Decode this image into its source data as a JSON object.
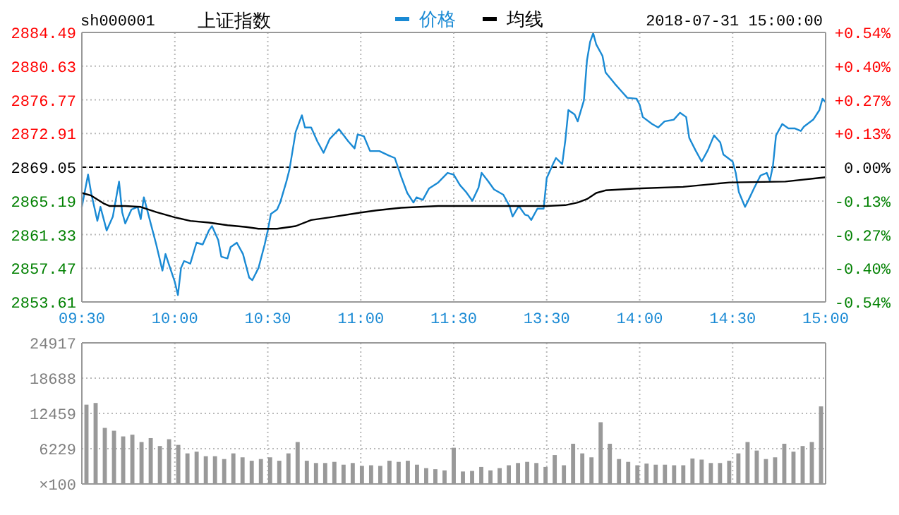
{
  "chart_data": [
    {
      "type": "line",
      "title": "上证指数",
      "annotations": [
        "sh000001"
      ],
      "legend": "top",
      "grid": true,
      "xlim": [
        "2018-07-31T09:30",
        "2018-07-31T11:30"
      ],
      "xticks": [
        {
          "value": "2018-07-31T09:30",
          "label": "09:30"
        },
        {
          "value": "2018-07-31T10:00",
          "label": "10:00"
        },
        {
          "value": "2018-07-31T10:30",
          "label": "10:30"
        },
        {
          "value": "2018-07-31T11:00",
          "label": "11:00"
        },
        {
          "value": "2018-07-31T11:30",
          "label": "11:30"
        }
      ],
      "ylim": [
        2853.61,
        2884.49
      ],
      "yticks": [
        2853.61,
        2857.47,
        2861.33,
        2865.19,
        2869.05,
        2872.91,
        2876.77,
        2880.63,
        2884.49
      ],
      "ref_lines": [
        {
          "axis": "y",
          "value": 2869.05,
          "color": "#000000",
          "line_style": "dashed"
        }
      ],
      "series": [
        {
          "name": "价格",
          "color": "#1a8ad4",
          "x": [
            "2018-07-31T09:30",
            "2018-07-31T09:32",
            "2018-07-31T09:33",
            "2018-07-31T09:35",
            "2018-07-31T09:36",
            "2018-07-31T09:38",
            "2018-07-31T09:40",
            "2018-07-31T09:42",
            "2018-07-31T09:43",
            "2018-07-31T09:44",
            "2018-07-31T09:46",
            "2018-07-31T09:48",
            "2018-07-31T09:49",
            "2018-07-31T09:50",
            "2018-07-31T09:52",
            "2018-07-31T09:54",
            "2018-07-31T09:56",
            "2018-07-31T09:57",
            "2018-07-31T09:58",
            "2018-07-31T10:00",
            "2018-07-31T10:01",
            "2018-07-31T10:02",
            "2018-07-31T10:03",
            "2018-07-31T10:05",
            "2018-07-31T10:07",
            "2018-07-31T10:09",
            "2018-07-31T10:11",
            "2018-07-31T10:12",
            "2018-07-31T10:14",
            "2018-07-31T10:15",
            "2018-07-31T10:17",
            "2018-07-31T10:18",
            "2018-07-31T10:20",
            "2018-07-31T10:22",
            "2018-07-31T10:24",
            "2018-07-31T10:25",
            "2018-07-31T10:27",
            "2018-07-31T10:29",
            "2018-07-31T10:30",
            "2018-07-31T10:31",
            "2018-07-31T10:33",
            "2018-07-31T10:34",
            "2018-07-31T10:36",
            "2018-07-31T10:37",
            "2018-07-31T10:39",
            "2018-07-31T10:41",
            "2018-07-31T10:42",
            "2018-07-31T10:44",
            "2018-07-31T10:46",
            "2018-07-31T10:48",
            "2018-07-31T10:50",
            "2018-07-31T10:53",
            "2018-07-31T10:56",
            "2018-07-31T10:58",
            "2018-07-31T10:59",
            "2018-07-31T11:01",
            "2018-07-31T11:03",
            "2018-07-31T11:06",
            "2018-07-31T11:09",
            "2018-07-31T11:11",
            "2018-07-31T11:13",
            "2018-07-31T11:15",
            "2018-07-31T11:17",
            "2018-07-31T11:18",
            "2018-07-31T11:20",
            "2018-07-31T11:22",
            "2018-07-31T11:25",
            "2018-07-31T11:28",
            "2018-07-31T11:30"
          ],
          "values": [
            2864.5,
            2868.2,
            2866.1,
            2862.9,
            2864.5,
            2861.8,
            2863.4,
            2867.4,
            2863.9,
            2862.6,
            2864.2,
            2864.5,
            2863.1,
            2865.6,
            2862.9,
            2860.2,
            2857.2,
            2859.1,
            2858.0,
            2855.9,
            2854.4,
            2857.5,
            2858.3,
            2858.0,
            2860.4,
            2860.2,
            2861.8,
            2862.3,
            2860.7,
            2858.8,
            2858.6,
            2859.9,
            2860.4,
            2859.1,
            2856.4,
            2856.1,
            2857.5,
            2860.2,
            2861.8,
            2863.7,
            2864.2,
            2865.0,
            2867.4,
            2868.8,
            2873.1,
            2875.0,
            2873.6,
            2873.6,
            2872.0,
            2870.7,
            2872.3,
            2873.4,
            2872.0,
            2871.2,
            2872.8,
            2872.6,
            2870.9,
            2870.9,
            2870.4,
            2870.1,
            2868.0,
            2866.1,
            2865.0,
            2865.6,
            2865.3,
            2866.6,
            2867.3,
            2868.4,
            2868.2
          ]
        },
        {
          "name": "均线",
          "color": "#000000",
          "x": [
            "2018-07-31T09:30",
            "2018-07-31T09:33",
            "2018-07-31T09:37",
            "2018-07-31T09:39",
            "2018-07-31T09:44",
            "2018-07-31T09:49",
            "2018-07-31T09:54",
            "2018-07-31T10:00",
            "2018-07-31T10:05",
            "2018-07-31T10:11",
            "2018-07-31T10:17",
            "2018-07-31T10:23",
            "2018-07-31T10:27",
            "2018-07-31T10:33",
            "2018-07-31T10:39",
            "2018-07-31T10:44",
            "2018-07-31T10:50",
            "2018-07-31T10:59",
            "2018-07-31T11:05",
            "2018-07-31T11:13",
            "2018-07-31T11:25",
            "2018-07-31T11:30"
          ],
          "values": [
            2866.1,
            2865.8,
            2864.9,
            2864.6,
            2864.6,
            2864.5,
            2863.9,
            2863.3,
            2862.9,
            2862.7,
            2862.4,
            2862.2,
            2862.0,
            2862.0,
            2862.3,
            2863.0,
            2863.3,
            2863.8,
            2864.1,
            2864.4,
            2864.6,
            2864.6
          ]
        }
      ]
    },
    {
      "type": "line",
      "annotations": [
        "2018-07-31 15:00:00"
      ],
      "grid": true,
      "xlim": [
        "2018-07-31T13:00",
        "2018-07-31T15:00"
      ],
      "xticks": [
        {
          "value": "2018-07-31T13:00",
          "label": null
        },
        {
          "value": "2018-07-31T13:30",
          "label": "13:30"
        },
        {
          "value": "2018-07-31T14:00",
          "label": "14:00"
        },
        {
          "value": "2018-07-31T14:30",
          "label": "14:30"
        },
        {
          "value": "2018-07-31T15:00",
          "label": "15:00"
        }
      ],
      "ylim": [
        2853.61,
        2884.49
      ],
      "y2lim": [
        -0.538,
        0.538
      ],
      "y2ticks": [
        {
          "value": -0.538,
          "label": "-0.54%"
        },
        {
          "value": -0.404,
          "label": "-0.40%"
        },
        {
          "value": -0.269,
          "label": "-0.27%"
        },
        {
          "value": -0.135,
          "label": "-0.13%"
        },
        {
          "value": 0,
          "label": "0.00%"
        },
        {
          "value": 0.135,
          "label": "+0.13%"
        },
        {
          "value": 0.269,
          "label": "+0.27%"
        },
        {
          "value": 0.404,
          "label": "+0.40%"
        },
        {
          "value": 0.538,
          "label": "+0.54%"
        }
      ],
      "ref_lines": [
        {
          "axis": "y",
          "value": 2869.05,
          "color": "#000000",
          "line_style": "dashed"
        }
      ],
      "series": [
        {
          "color": "#1a8ad4",
          "x": [
            "2018-07-31T13:00",
            "2018-07-31T13:02",
            "2018-07-31T13:04",
            "2018-07-31T13:06",
            "2018-07-31T13:08",
            "2018-07-31T13:09",
            "2018-07-31T13:11",
            "2018-07-31T13:13",
            "2018-07-31T13:16",
            "2018-07-31T13:18",
            "2018-07-31T13:19",
            "2018-07-31T13:21",
            "2018-07-31T13:23",
            "2018-07-31T13:24",
            "2018-07-31T13:25",
            "2018-07-31T13:27",
            "2018-07-31T13:29",
            "2018-07-31T13:30",
            "2018-07-31T13:32",
            "2018-07-31T13:33",
            "2018-07-31T13:35",
            "2018-07-31T13:36",
            "2018-07-31T13:37",
            "2018-07-31T13:39",
            "2018-07-31T13:40",
            "2018-07-31T13:42",
            "2018-07-31T13:43",
            "2018-07-31T13:44",
            "2018-07-31T13:45",
            "2018-07-31T13:46",
            "2018-07-31T13:48",
            "2018-07-31T13:49",
            "2018-07-31T13:52",
            "2018-07-31T13:54",
            "2018-07-31T13:56",
            "2018-07-31T13:59",
            "2018-07-31T14:00",
            "2018-07-31T14:01",
            "2018-07-31T14:04",
            "2018-07-31T14:06",
            "2018-07-31T14:08",
            "2018-07-31T14:11",
            "2018-07-31T14:13",
            "2018-07-31T14:15",
            "2018-07-31T14:16",
            "2018-07-31T14:18",
            "2018-07-31T14:20",
            "2018-07-31T14:22",
            "2018-07-31T14:24",
            "2018-07-31T14:26",
            "2018-07-31T14:27",
            "2018-07-31T14:30",
            "2018-07-31T14:31",
            "2018-07-31T14:32",
            "2018-07-31T14:34",
            "2018-07-31T14:35",
            "2018-07-31T14:37",
            "2018-07-31T14:39",
            "2018-07-31T14:41",
            "2018-07-31T14:42",
            "2018-07-31T14:43",
            "2018-07-31T14:44",
            "2018-07-31T14:46",
            "2018-07-31T14:48",
            "2018-07-31T14:50",
            "2018-07-31T14:52",
            "2018-07-31T14:53",
            "2018-07-31T14:56",
            "2018-07-31T14:58",
            "2018-07-31T14:59",
            "2018-07-31T15:00"
          ],
          "values": [
            2868.2,
            2867.0,
            2866.2,
            2865.2,
            2866.7,
            2868.4,
            2867.5,
            2866.5,
            2865.9,
            2864.6,
            2863.4,
            2864.6,
            2863.6,
            2863.5,
            2863.0,
            2864.3,
            2864.3,
            2867.8,
            2869.4,
            2870.1,
            2869.4,
            2872.1,
            2875.6,
            2875.1,
            2874.3,
            2876.7,
            2881.3,
            2883.4,
            2884.4,
            2883.1,
            2881.8,
            2879.9,
            2878.6,
            2877.8,
            2877.0,
            2876.9,
            2876.2,
            2874.8,
            2874.0,
            2873.6,
            2874.3,
            2874.5,
            2875.3,
            2874.8,
            2872.4,
            2871.0,
            2869.7,
            2871.0,
            2872.7,
            2871.9,
            2870.5,
            2869.7,
            2868.4,
            2866.2,
            2864.5,
            2865.2,
            2866.7,
            2868.1,
            2868.4,
            2867.5,
            2869.2,
            2872.7,
            2874.0,
            2873.5,
            2873.5,
            2873.2,
            2873.7,
            2874.5,
            2875.6,
            2876.9,
            2876.5
          ]
        },
        {
          "color": "#000000",
          "x": [
            "2018-07-31T13:00",
            "2018-07-31T13:30",
            "2018-07-31T13:36",
            "2018-07-31T13:40",
            "2018-07-31T13:43",
            "2018-07-31T13:46",
            "2018-07-31T13:49",
            "2018-07-31T13:59",
            "2018-07-31T14:14",
            "2018-07-31T14:29",
            "2018-07-31T14:47",
            "2018-07-31T15:00"
          ],
          "values": [
            2864.6,
            2864.6,
            2864.7,
            2865.0,
            2865.4,
            2866.1,
            2866.4,
            2866.6,
            2866.8,
            2867.3,
            2867.4,
            2867.9
          ]
        }
      ]
    },
    {
      "type": "bar",
      "grid": true,
      "tick_labels": "y",
      "ylabel": "×100",
      "categories": [
        null,
        null,
        null,
        null,
        null,
        null,
        null,
        null,
        null,
        null,
        null,
        null,
        null,
        null,
        null,
        null,
        null,
        null,
        null,
        null,
        null,
        null,
        null,
        null,
        null,
        null,
        null,
        null,
        null,
        null,
        null,
        null,
        null,
        null,
        null,
        null,
        null,
        null,
        null,
        null,
        null,
        null,
        null,
        null,
        null,
        null,
        null,
        null,
        null,
        null,
        null,
        null,
        null,
        null,
        null,
        null,
        null,
        null,
        null,
        null,
        null,
        null,
        null,
        null,
        null,
        null,
        null,
        null,
        null,
        null,
        null,
        null,
        null,
        null,
        null,
        null,
        null,
        null,
        null,
        null,
        null
      ],
      "ylim": [
        0,
        24917
      ],
      "yticks": [
        6229,
        12459,
        18688,
        24917
      ],
      "series": [
        {
          "color": "#999999",
          "values": [
            14000,
            14300,
            9900,
            9400,
            8400,
            8700,
            7400,
            8100,
            6700,
            7900,
            6900,
            5400,
            5700,
            4900,
            4900,
            4400,
            5400,
            4700,
            4100,
            4400,
            4700,
            4100,
            5400,
            7400,
            4100,
            3700,
            3700,
            3900,
            3400,
            3700,
            3200,
            3300,
            3200,
            4100,
            3900,
            4100,
            3400,
            2800,
            2600,
            2400,
            6400,
            2200,
            2300,
            3000,
            2400,
            2800,
            3300,
            3700,
            3900,
            3700,
            3000,
            5100,
            3300,
            7100,
            5400,
            4700,
            10900,
            7100,
            4400,
            3900,
            3300,
            3600,
            3400,
            3400,
            3300,
            3300,
            4500,
            4300,
            3700,
            3700,
            4100,
            5400,
            7400,
            5900,
            4400,
            4700,
            7100,
            5700,
            6700,
            7400,
            13700
          ]
        }
      ]
    }
  ]
}
